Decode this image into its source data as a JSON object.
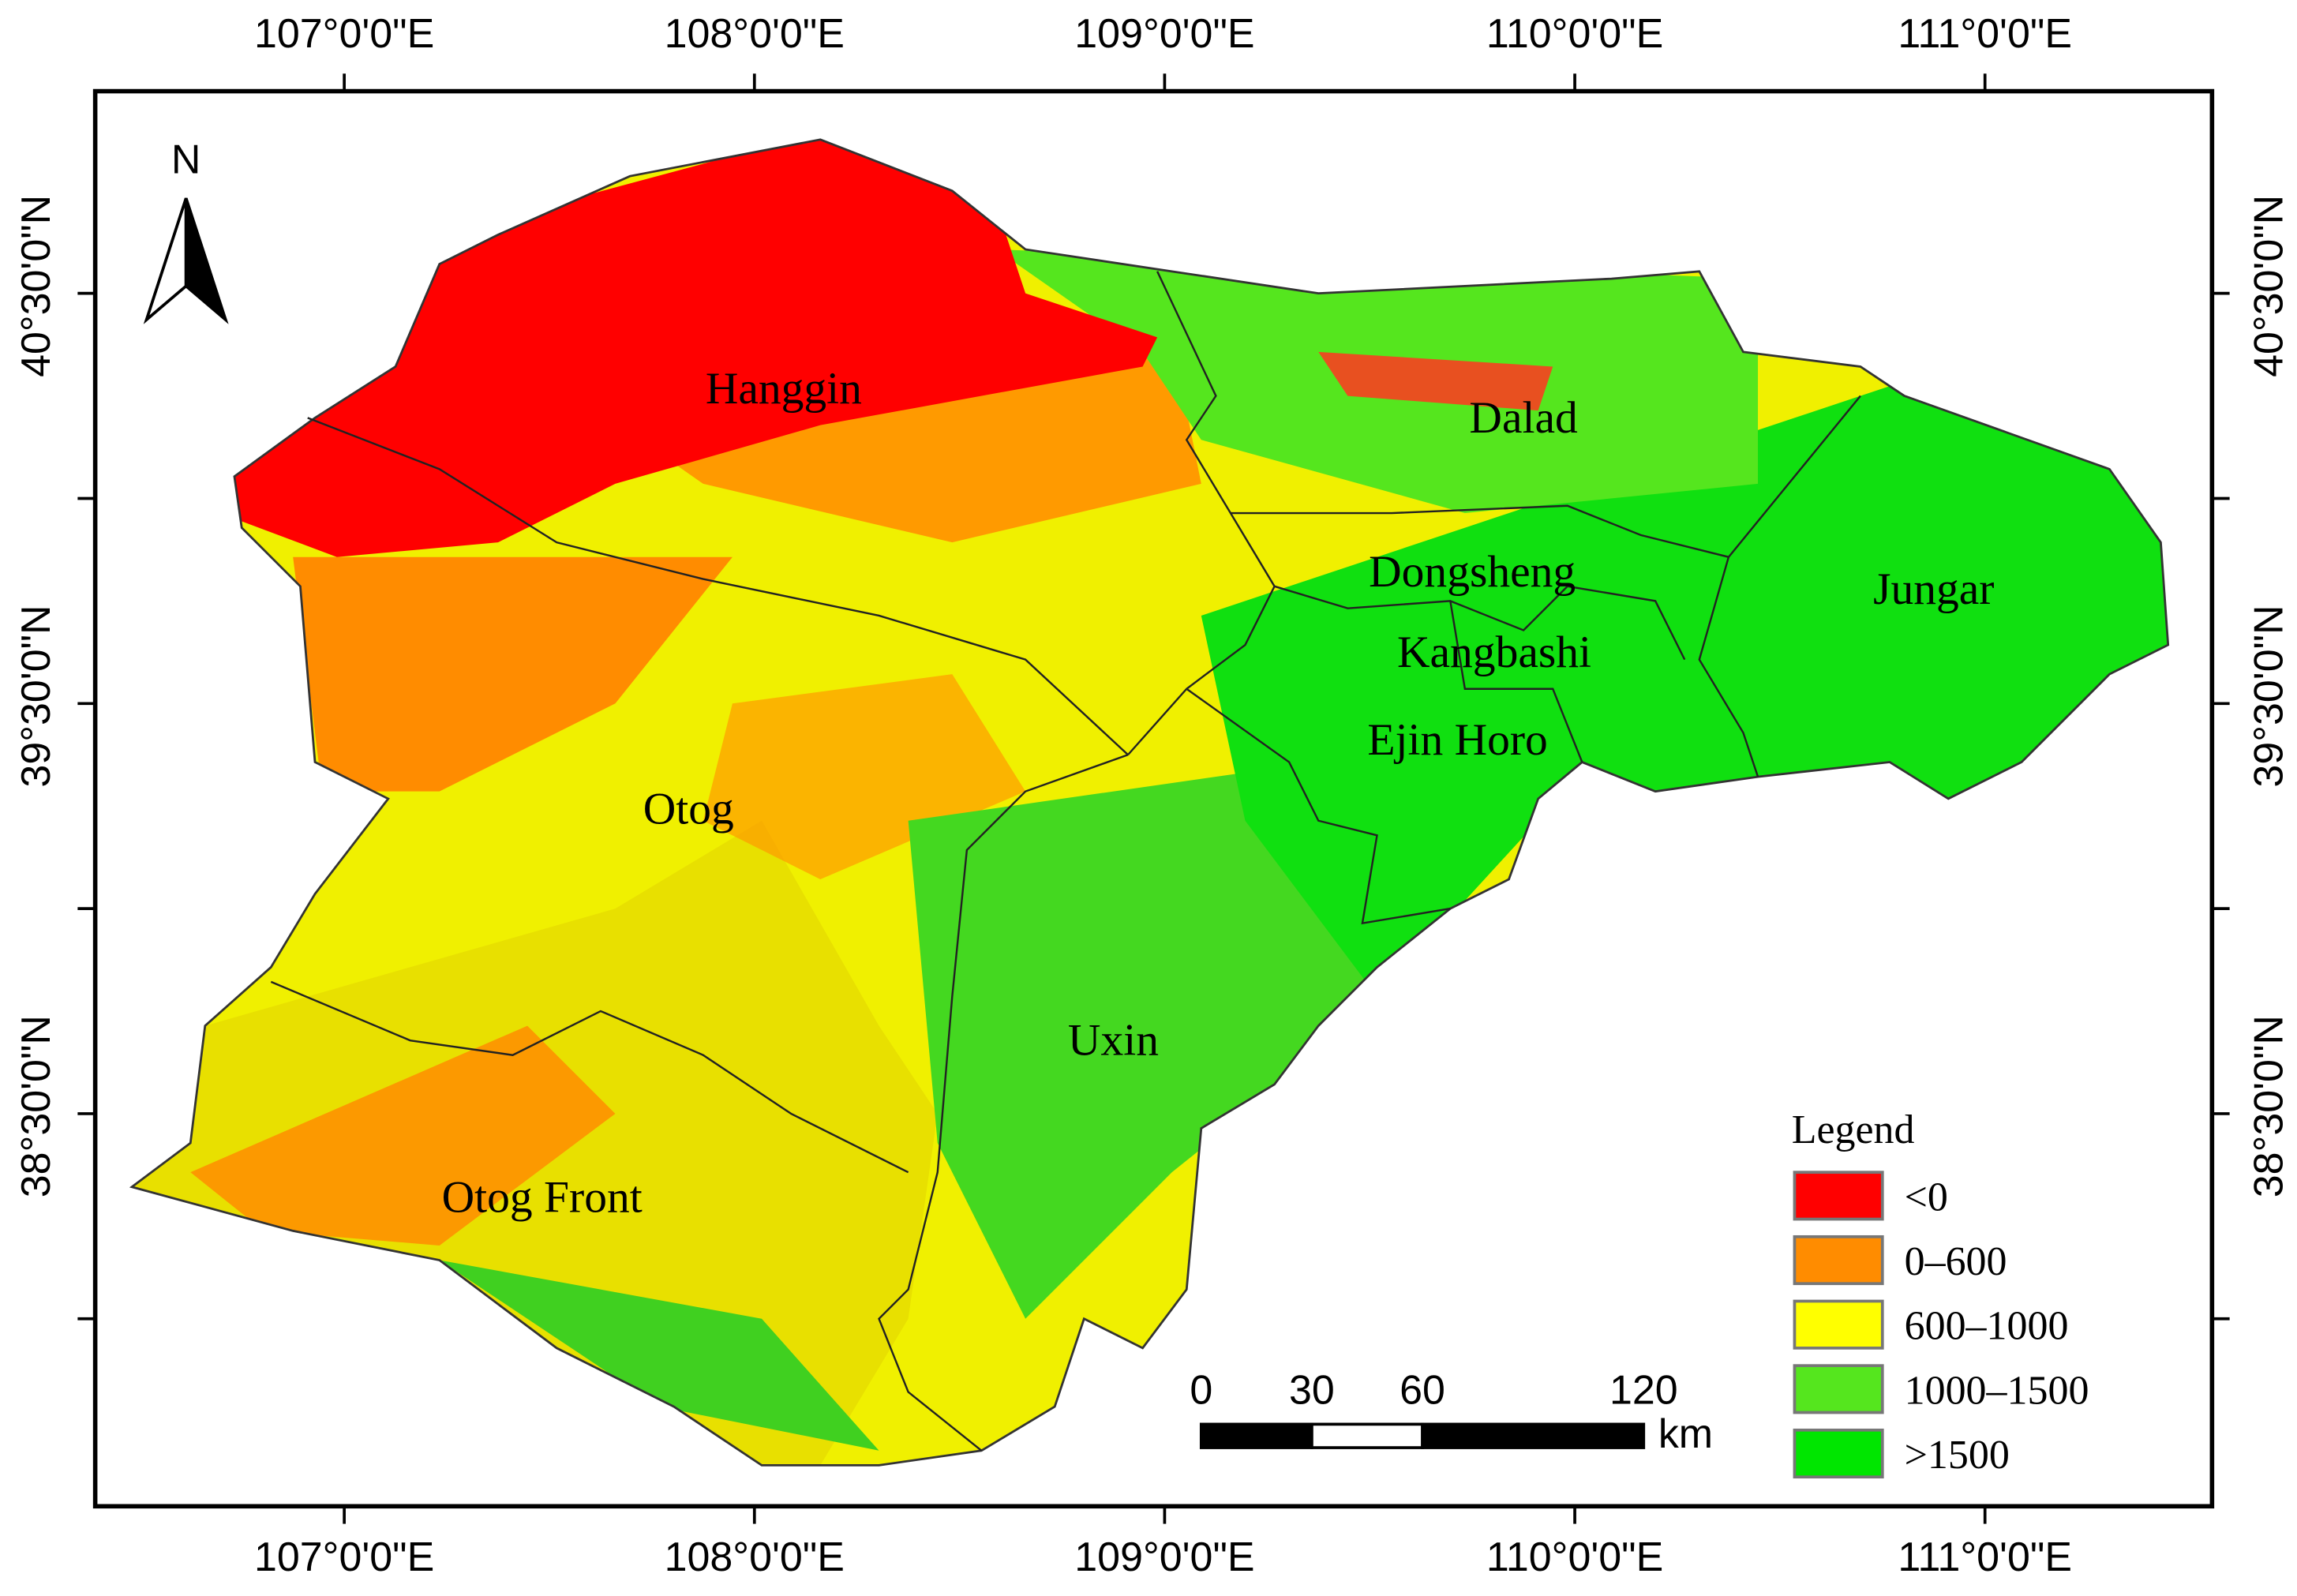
{
  "map": {
    "top_labels": [
      "107°0'0\"E",
      "108°0'0\"E",
      "109°0'0\"E",
      "110°0'0\"E",
      "111°0'0\"E"
    ],
    "bottom_labels": [
      "107°0'0\"E",
      "108°0'0\"E",
      "109°0'0\"E",
      "110°0'0\"E",
      "111°0'0\"E"
    ],
    "left_labels": [
      "40°30'0\"N",
      "39°30'0\"N",
      "38°30'0\"N"
    ],
    "right_labels": [
      "40°30'0\"N",
      "39°30'0\"N",
      "38°30'0\"N"
    ],
    "north": "N",
    "regions": [
      "Hanggin",
      "Dalad",
      "Dongsheng",
      "Jungar",
      "Kangbashi",
      "Ejin Horo",
      "Otog",
      "Uxin",
      "Otog Front"
    ],
    "legend": {
      "title": "Legend",
      "items": [
        {
          "label": "<0",
          "color": "#ff0000"
        },
        {
          "label": "0–600",
          "color": "#ff8c00"
        },
        {
          "label": "600–1000",
          "color": "#ffff00"
        },
        {
          "label": "1000–1500",
          "color": "#55e61e"
        },
        {
          "label": ">1500",
          "color": "#00e600"
        }
      ]
    },
    "scale_bar": {
      "ticks": [
        0,
        30,
        60,
        120
      ],
      "unit": "km"
    }
  }
}
